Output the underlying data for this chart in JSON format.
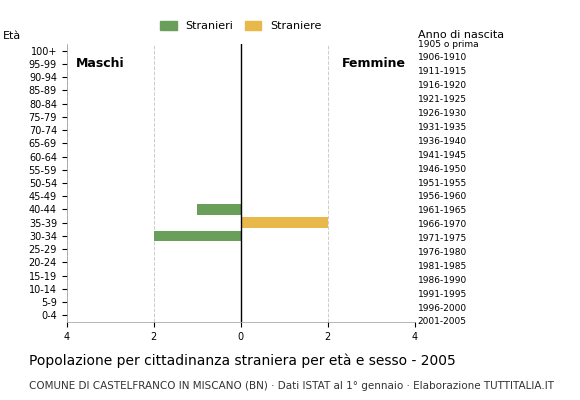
{
  "age_groups": [
    "0-4",
    "5-9",
    "10-14",
    "15-19",
    "20-24",
    "25-29",
    "30-34",
    "35-39",
    "40-44",
    "45-49",
    "50-54",
    "55-59",
    "60-64",
    "65-69",
    "70-74",
    "75-79",
    "80-84",
    "85-89",
    "90-94",
    "95-99",
    "100+"
  ],
  "birth_years": [
    "2001-2005",
    "1996-2000",
    "1991-1995",
    "1986-1990",
    "1981-1985",
    "1976-1980",
    "1971-1975",
    "1966-1970",
    "1961-1965",
    "1956-1960",
    "1951-1955",
    "1946-1950",
    "1941-1945",
    "1936-1940",
    "1931-1935",
    "1926-1930",
    "1921-1925",
    "1916-1920",
    "1911-1915",
    "1906-1910",
    "1905 o prima"
  ],
  "males": [
    0,
    0,
    0,
    0,
    0,
    0,
    2,
    0,
    1,
    0,
    0,
    0,
    0,
    0,
    0,
    0,
    0,
    0,
    0,
    0,
    0
  ],
  "females": [
    0,
    0,
    0,
    0,
    0,
    0,
    0,
    2,
    0,
    0,
    0,
    0,
    0,
    0,
    0,
    0,
    0,
    0,
    0,
    0,
    0
  ],
  "male_color": "#6a9e5b",
  "female_color": "#e8b84b",
  "xlim": 4,
  "xlabel_left": "Maschi",
  "xlabel_right": "Femmine",
  "ylabel_right": "Anno di nascita",
  "legend_male": "Stranieri",
  "legend_female": "Straniere",
  "title": "Popolazione per cittadinanza straniera per età e sesso - 2005",
  "subtitle": "COMUNE DI CASTELFRANCO IN MISCANO (BN) · Dati ISTAT al 1° gennaio · Elaborazione TUTTITALIA.IT",
  "xticks": [
    -4,
    -2,
    0,
    2,
    4
  ],
  "xticklabels": [
    "4",
    "2",
    "0",
    "2",
    "4"
  ],
  "bar_height": 0.8,
  "bg_color": "#ffffff",
  "grid_color": "#cccccc",
  "title_fontsize": 10,
  "subtitle_fontsize": 7.5,
  "axis_label_fontsize": 8,
  "tick_fontsize": 7,
  "legend_fontsize": 8,
  "maschi_femmine_fontsize": 9
}
